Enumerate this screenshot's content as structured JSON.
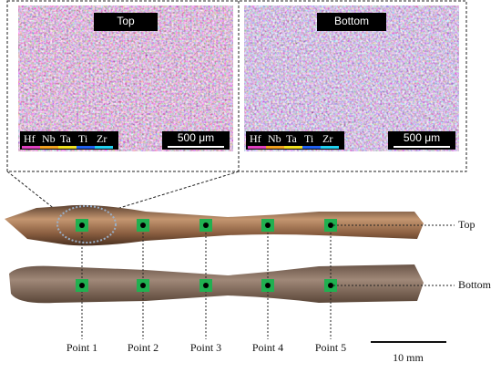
{
  "panels": [
    {
      "title": "Top",
      "elements": [
        "Hf",
        "Nb",
        "Ta",
        "Ti",
        "Zr"
      ],
      "scale": "500 μm"
    },
    {
      "title": "Bottom",
      "elements": [
        "Hf",
        "Nb",
        "Ta",
        "Ti",
        "Zr"
      ],
      "scale": "500 μm"
    }
  ],
  "sides": [
    "Top",
    "Bottom"
  ],
  "points": [
    "Point 1",
    "Point 2",
    "Point 3",
    "Point 4",
    "Point 5"
  ],
  "scale_bar": "10 mm"
}
